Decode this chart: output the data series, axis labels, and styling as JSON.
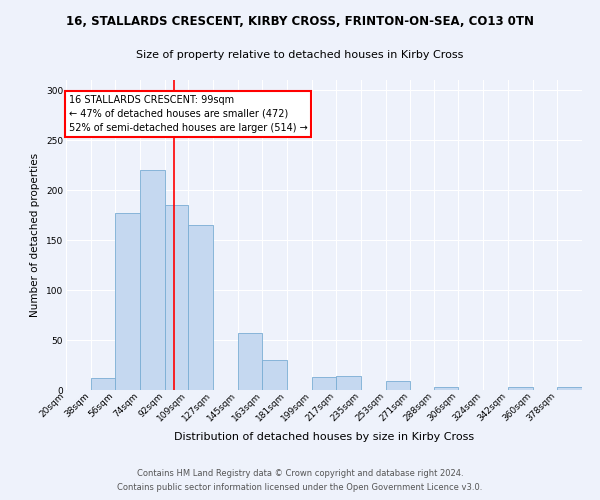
{
  "title1": "16, STALLARDS CRESCENT, KIRBY CROSS, FRINTON-ON-SEA, CO13 0TN",
  "title2": "Size of property relative to detached houses in Kirby Cross",
  "xlabel": "Distribution of detached houses by size in Kirby Cross",
  "ylabel": "Number of detached properties",
  "categories": [
    "20sqm",
    "38sqm",
    "56sqm",
    "74sqm",
    "92sqm",
    "109sqm",
    "127sqm",
    "145sqm",
    "163sqm",
    "181sqm",
    "199sqm",
    "217sqm",
    "235sqm",
    "253sqm",
    "271sqm",
    "288sqm",
    "306sqm",
    "324sqm",
    "342sqm",
    "360sqm",
    "378sqm"
  ],
  "values": [
    0,
    12,
    177,
    220,
    185,
    165,
    0,
    57,
    30,
    0,
    13,
    14,
    0,
    9,
    0,
    3,
    0,
    0,
    3,
    0,
    3
  ],
  "bar_color": "#c5d8f0",
  "bar_edge_color": "#7aadd4",
  "property_line_x": 99,
  "annotation_text": "16 STALLARDS CRESCENT: 99sqm\n← 47% of detached houses are smaller (472)\n52% of semi-detached houses are larger (514) →",
  "annotation_box_color": "white",
  "annotation_box_edge": "red",
  "vline_color": "red",
  "footer1": "Contains HM Land Registry data © Crown copyright and database right 2024.",
  "footer2": "Contains public sector information licensed under the Open Government Licence v3.0.",
  "ylim": [
    0,
    310
  ],
  "bg_color": "#eef2fb",
  "plot_bg": "#eef2fb",
  "grid_color": "white",
  "title1_fontsize": 8.5,
  "title2_fontsize": 8,
  "xlabel_fontsize": 8,
  "ylabel_fontsize": 7.5,
  "tick_fontsize": 6.5,
  "annotation_fontsize": 7,
  "footer_fontsize": 6
}
